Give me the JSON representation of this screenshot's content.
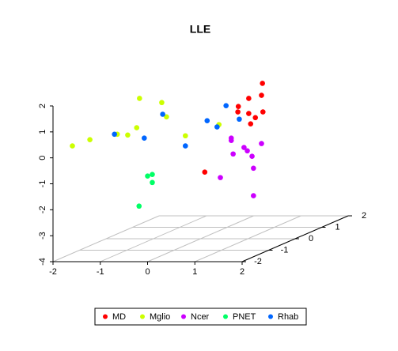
{
  "chart_data": {
    "type": "scatter3d",
    "title": "LLE",
    "xlim": [
      -2,
      2
    ],
    "xticks": [
      -2,
      -1,
      0,
      1,
      2
    ],
    "ylim": [
      -4,
      2
    ],
    "yticks": [
      -4,
      -3,
      -2,
      -1,
      0,
      1,
      2
    ],
    "zlim": [
      -2,
      2
    ],
    "zticks": [
      -2,
      -1,
      0,
      1,
      2
    ],
    "grid": true,
    "series": [
      {
        "name": "MD",
        "color": "#ff0000",
        "x": [
          2.43,
          2.41,
          2.14,
          1.92,
          1.91,
          2.14,
          2.44,
          2.28,
          2.18,
          1.21
        ],
        "values": [
          2.87,
          2.41,
          2.29,
          1.98,
          1.77,
          1.71,
          1.77,
          1.55,
          1.31,
          -0.55
        ]
      },
      {
        "name": "Mglio",
        "color": "#ccff00",
        "x": [
          -0.17,
          0.3,
          0.4,
          -0.23,
          -0.42,
          -0.64,
          0.8,
          1.51,
          -1.22,
          -1.59
        ],
        "values": [
          2.29,
          2.13,
          1.58,
          1.16,
          0.88,
          0.91,
          0.85,
          1.28,
          0.7,
          0.46
        ]
      },
      {
        "name": "Ncer",
        "color": "#cc00ff",
        "x": [
          1.77,
          1.77,
          2.04,
          2.11,
          2.41,
          2.21,
          1.81,
          2.24,
          1.54,
          2.24
        ],
        "values": [
          0.76,
          0.67,
          0.4,
          0.27,
          0.55,
          0.06,
          0.15,
          -0.4,
          -0.76,
          -1.46
        ]
      },
      {
        "name": "PNET",
        "color": "#00ff66",
        "x": [
          0,
          0.1,
          0.1,
          -0.18
        ],
        "values": [
          -0.7,
          -0.64,
          -0.95,
          -1.86
        ]
      },
      {
        "name": "Rhab",
        "color": "#0066ff",
        "x": [
          1.66,
          1.94,
          1.47,
          1.26,
          0.32,
          0.8,
          -0.07,
          -0.7
        ],
        "values": [
          2.01,
          1.49,
          1.19,
          1.43,
          1.68,
          0.46,
          0.76,
          0.91
        ]
      }
    ]
  }
}
